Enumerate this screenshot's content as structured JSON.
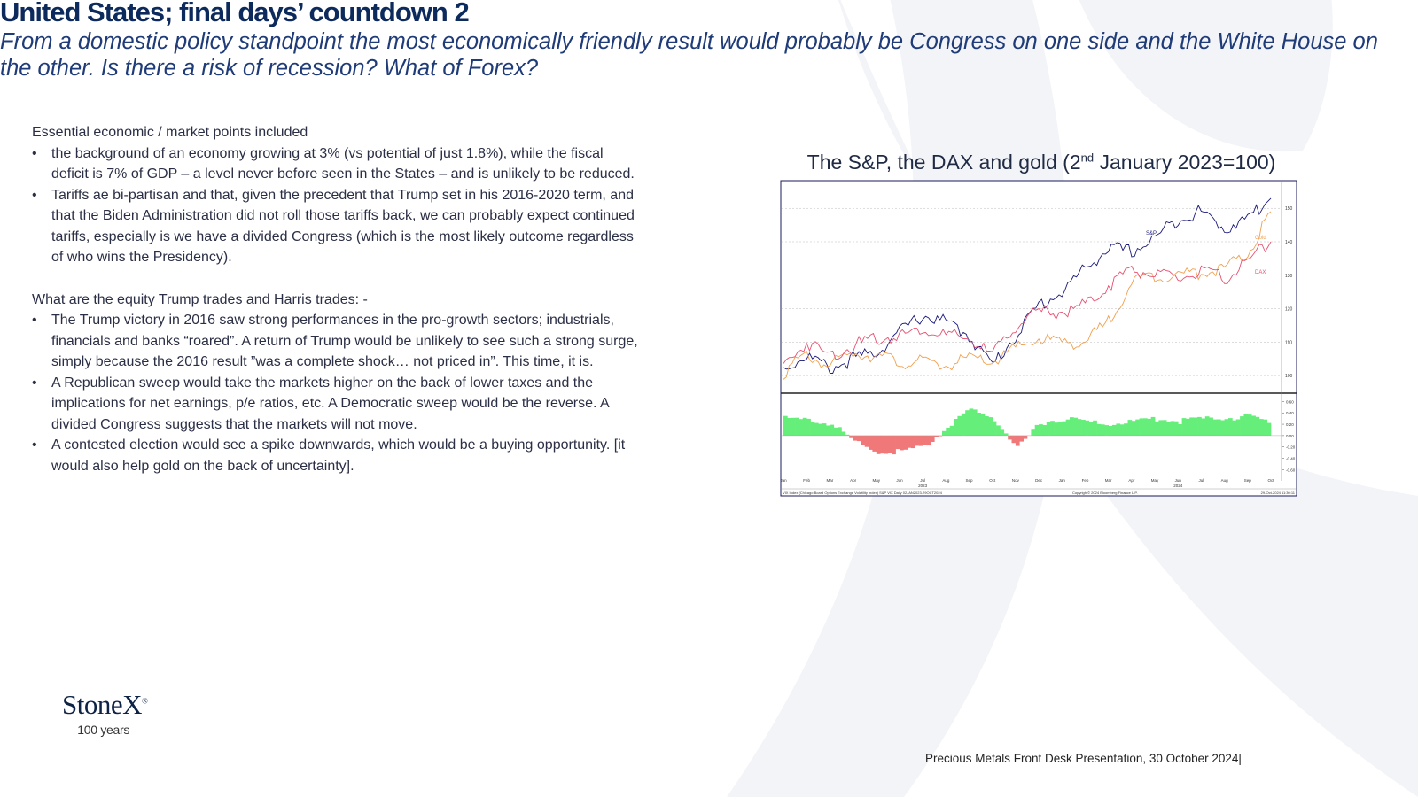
{
  "slide": {
    "title": "United States; final days’ countdown 2",
    "subtitle": "From a domestic policy standpoint the most economically friendly result would probably be Congress on one side and the White House on the other.  Is there a risk of recession?  What of Forex?"
  },
  "body": {
    "intro": "Essential economic / market points included",
    "points1": [
      "the background of an economy growing at 3% (vs potential of just 1.8%), while the fiscal deficit is 7% of GDP – a level never before seen in the States – and is unlikely to be reduced.",
      "Tariffs ae bi-partisan and that, given the precedent that Trump set in his 2016-2020 term, and that the Biden Administration did not roll those tariffs back, we can probably expect continued tariffs, especially is we have a divided Congress (which is the most likely outcome regardless of who wins the Presidency)."
    ],
    "section2": "What are the equity Trump trades and Harris trades: -",
    "points2": [
      "The Trump victory in 2016 saw strong performances in the pro-growth sectors; industrials, financials and banks “roared”.  A return of Trump would be unlikely to see such a strong surge, simply because the 2016 result ”was a complete shock… not priced in”.  This time, it is.",
      "A Republican sweep would take the markets higher on the back of lower taxes and the implications for net earnings, p/e ratios, etc.  A Democratic sweep would be the reverse.  A divided Congress suggests that the markets will not move.",
      "A contested election would see a spike downwards, which would be a buying opportunity.  [it would also help gold on the back of uncertainty]."
    ]
  },
  "chart": {
    "title_pre": "The S&P, the DAX and gold (2",
    "title_sup": "nd",
    "title_post": " January 2023=100)"
  },
  "chart_data": {
    "type": "line",
    "title": "The S&P, the DAX and gold (2nd January 2023=100)",
    "x": [
      "Jan 2023",
      "Feb",
      "Mar",
      "Apr",
      "May",
      "Jun",
      "Jul",
      "Aug",
      "Sep",
      "Oct",
      "Nov",
      "Dec",
      "Jan 2024",
      "Feb",
      "Mar",
      "Apr",
      "May",
      "Jun",
      "Jul",
      "Aug",
      "Sep",
      "Oct"
    ],
    "years": [
      "2023",
      "2024"
    ],
    "ylim": [
      95,
      158
    ],
    "yticks": [
      100,
      110,
      120,
      130,
      140,
      150
    ],
    "series": [
      {
        "name": "S&P",
        "color": "#1a1a7a",
        "values": [
          102,
          106,
          102,
          105,
          107,
          113,
          118,
          116,
          112,
          103,
          112,
          121,
          125,
          132,
          138,
          137,
          141,
          147,
          149,
          144,
          147,
          153
        ]
      },
      {
        "name": "Gold",
        "color": "#f0a050",
        "values": [
          101,
          106,
          103,
          107,
          106,
          104,
          104,
          103,
          105,
          104,
          108,
          111,
          110,
          110,
          116,
          128,
          130,
          130,
          131,
          132,
          136,
          149
        ]
      },
      {
        "name": "DAX",
        "color": "#e85070",
        "values": [
          103,
          110,
          106,
          109,
          111,
          112,
          114,
          112,
          111,
          106,
          115,
          119,
          119,
          121,
          127,
          132,
          130,
          129,
          131,
          129,
          134,
          140
        ]
      }
    ],
    "sub_panel": {
      "type": "area",
      "yticks": [
        0.6,
        0.4,
        0.2,
        0.0,
        -0.2,
        -0.4,
        -0.6
      ],
      "ylim": [
        -0.75,
        0.7
      ],
      "values": [
        0.3,
        0.28,
        0.2,
        -0.1,
        -0.3,
        -0.28,
        -0.2,
        0.15,
        0.45,
        0.3,
        -0.22,
        0.22,
        0.3,
        0.25,
        0.2,
        0.25,
        0.3,
        0.25,
        0.3,
        0.3,
        0.35,
        0.18
      ],
      "positive_color": "#66ee7a",
      "negative_color": "#f07878"
    },
    "footer_left": "VIX Index (Chicago Board Options Exchange Volatility Index) S&P VIX  Daily 02JAN2023-29OCT2024",
    "footer_mid": "Copyright© 2024 Bloomberg Finance L.P.",
    "footer_right": "29-Oct-2024 11:30:11"
  },
  "logo": {
    "word": "StoneX",
    "mark": "®",
    "tagline": "— 100 years —"
  },
  "footer": {
    "text": "Precious Metals Front Desk Presentation, 30 October 2024|"
  }
}
